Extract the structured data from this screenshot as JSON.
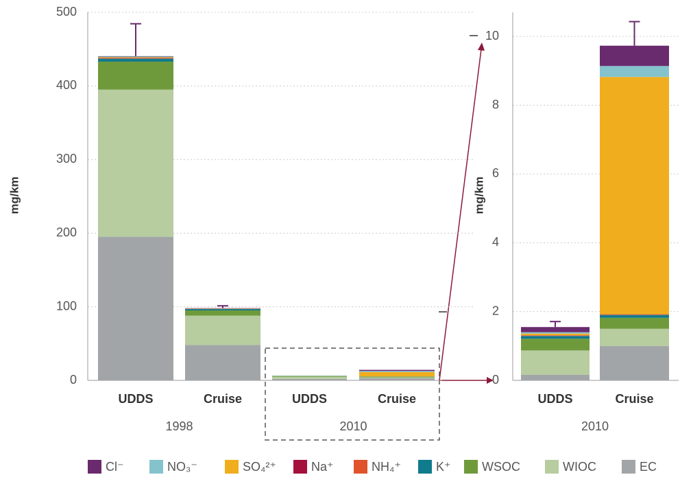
{
  "chart_data": [
    {
      "type": "stacked-bar",
      "y_label": "mg/km",
      "categories": [
        "UDDS",
        "Cruise",
        "UDDS",
        "Cruise"
      ],
      "groups": [
        "1998",
        "2010"
      ],
      "ylim": [
        0,
        500
      ],
      "yticks": [
        0,
        100,
        200,
        300,
        400,
        500
      ],
      "grid": true,
      "series": [
        {
          "name": "EC",
          "color": "#a2a5a8",
          "values": [
            195,
            48,
            2,
            3
          ]
        },
        {
          "name": "WIOC",
          "color": "#b7cc9f",
          "values": [
            200,
            40,
            3,
            1
          ]
        },
        {
          "name": "WSOC",
          "color": "#6f9a3c",
          "values": [
            38,
            7,
            1,
            1
          ]
        },
        {
          "name": "K⁺",
          "color": "#0f7b8c",
          "values": [
            4,
            2,
            0.2,
            0.3
          ]
        },
        {
          "name": "NH₄⁺",
          "color": "#e0532b",
          "values": [
            0.5,
            0.2,
            0,
            0
          ]
        },
        {
          "name": "Na⁺",
          "color": "#a5103c",
          "values": [
            0.5,
            0.2,
            0,
            0
          ]
        },
        {
          "name": "SO₄²⁺",
          "color": "#f0ae1e",
          "values": [
            1,
            0.3,
            0,
            6
          ]
        },
        {
          "name": "NO₃⁻",
          "color": "#84c3cc",
          "values": [
            1,
            0.3,
            0,
            1.5
          ]
        },
        {
          "name": "Cl⁻",
          "color": "#6a2a6e",
          "values": [
            0.5,
            0.3,
            0,
            1.5
          ]
        }
      ],
      "errors": [
        44,
        3,
        null,
        null
      ]
    },
    {
      "type": "stacked-bar",
      "y_label": "mg/km",
      "categories": [
        "UDDS",
        "Cruise"
      ],
      "groups": [
        "2010"
      ],
      "ylim": [
        0,
        10.7
      ],
      "yticks": [
        0,
        2,
        4,
        6,
        8,
        10
      ],
      "grid": true,
      "series": [
        {
          "values": [
            0.16,
            1.0
          ]
        },
        {
          "values": [
            0.71,
            0.5
          ]
        },
        {
          "values": [
            0.34,
            0.32
          ]
        },
        {
          "values": [
            0.08,
            0.08
          ]
        },
        {
          "values": [
            0.01,
            0.01
          ]
        },
        {
          "values": [
            0.01,
            0.01
          ]
        },
        {
          "values": [
            0.05,
            6.9
          ]
        },
        {
          "values": [
            0.04,
            0.32
          ]
        },
        {
          "values": [
            0.15,
            0.59
          ]
        }
      ],
      "errors": [
        0.16,
        0.7
      ]
    }
  ]
}
